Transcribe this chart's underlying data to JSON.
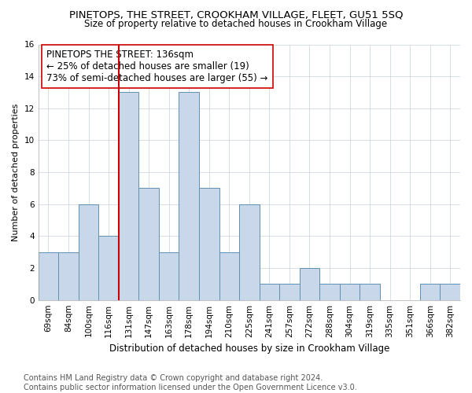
{
  "title": "PINETOPS, THE STREET, CROOKHAM VILLAGE, FLEET, GU51 5SQ",
  "subtitle": "Size of property relative to detached houses in Crookham Village",
  "xlabel": "Distribution of detached houses by size in Crookham Village",
  "ylabel": "Number of detached properties",
  "bar_labels": [
    "69sqm",
    "84sqm",
    "100sqm",
    "116sqm",
    "131sqm",
    "147sqm",
    "163sqm",
    "178sqm",
    "194sqm",
    "210sqm",
    "225sqm",
    "241sqm",
    "257sqm",
    "272sqm",
    "288sqm",
    "304sqm",
    "319sqm",
    "335sqm",
    "351sqm",
    "366sqm",
    "382sqm"
  ],
  "bar_values": [
    3,
    3,
    6,
    4,
    13,
    7,
    3,
    13,
    7,
    3,
    6,
    1,
    1,
    2,
    1,
    1,
    1,
    0,
    0,
    1,
    1
  ],
  "bar_color": "#c8d8ea",
  "bar_edgecolor": "#6090b0",
  "bar_linewidth": 0.7,
  "vline_color": "#cc0000",
  "vline_x_index": 4,
  "annotation_text": "PINETOPS THE STREET: 136sqm\n← 25% of detached houses are smaller (19)\n73% of semi-detached houses are larger (55) →",
  "annotation_box_facecolor": "white",
  "annotation_box_edgecolor": "#cc0000",
  "ylim": [
    0,
    16
  ],
  "yticks": [
    0,
    2,
    4,
    6,
    8,
    10,
    12,
    14,
    16
  ],
  "grid_color": "#d0d8e0",
  "background_color": "white",
  "footnote": "Contains HM Land Registry data © Crown copyright and database right 2024.\nContains public sector information licensed under the Open Government Licence v3.0.",
  "title_fontsize": 9.5,
  "subtitle_fontsize": 8.5,
  "xlabel_fontsize": 8.5,
  "ylabel_fontsize": 8.0,
  "tick_fontsize": 7.5,
  "annotation_fontsize": 8.5,
  "footnote_fontsize": 7.0
}
